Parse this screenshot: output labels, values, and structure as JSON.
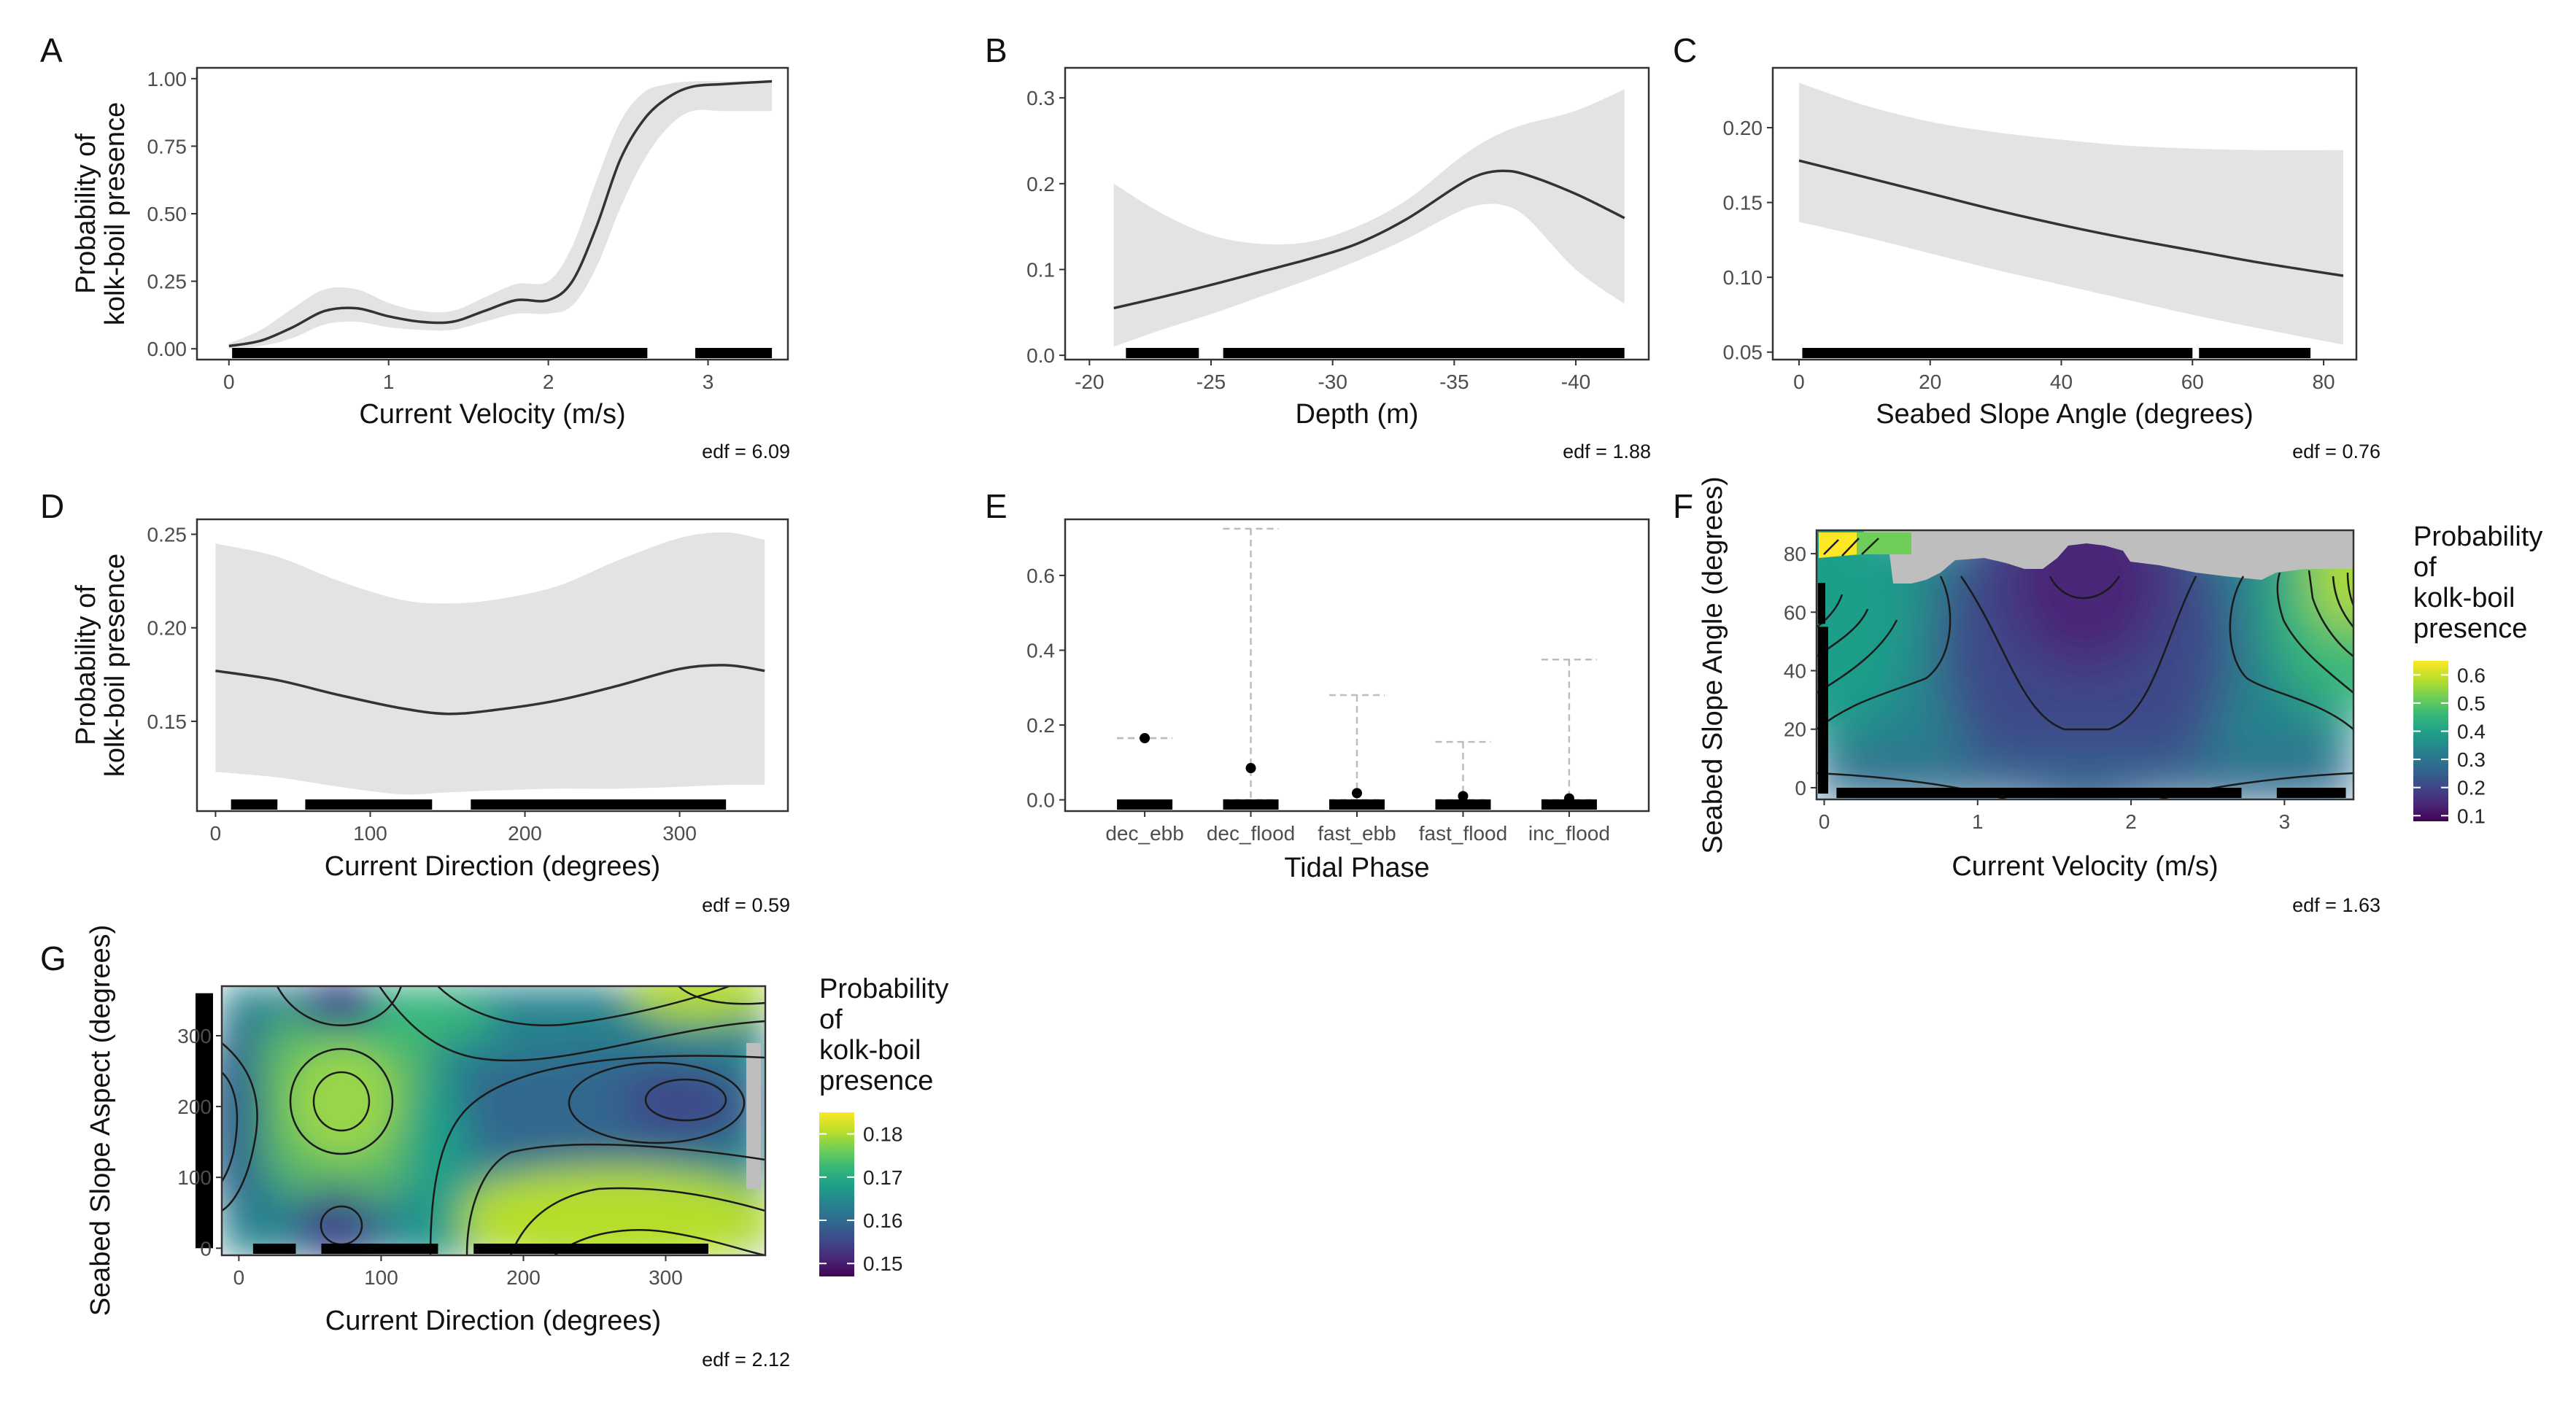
{
  "chart_data": [
    {
      "panel": "A",
      "type": "line",
      "xlabel": "Current Velocity (m/s)",
      "ylabel": "Probability of kolk-boil presence",
      "xlim": [
        -0.2,
        3.5
      ],
      "ylim": [
        -0.04,
        1.04
      ],
      "xticks": [
        0,
        1,
        2,
        3
      ],
      "xticklabels": [
        "0",
        "1",
        "2",
        "3"
      ],
      "yticks": [
        0,
        0.25,
        0.5,
        0.75,
        1.0
      ],
      "yticklabels": [
        "0.00",
        "0.25",
        "0.50",
        "0.75",
        "1.00"
      ],
      "x": [
        0.0,
        0.2,
        0.4,
        0.6,
        0.8,
        1.0,
        1.2,
        1.4,
        1.6,
        1.8,
        2.0,
        2.15,
        2.3,
        2.45,
        2.6,
        2.75,
        2.9,
        3.1,
        3.4
      ],
      "y": [
        0.01,
        0.03,
        0.08,
        0.14,
        0.15,
        0.12,
        0.1,
        0.1,
        0.14,
        0.18,
        0.18,
        0.25,
        0.45,
        0.7,
        0.85,
        0.93,
        0.97,
        0.98,
        0.99
      ],
      "lower": [
        0.0,
        0.01,
        0.04,
        0.09,
        0.1,
        0.08,
        0.07,
        0.07,
        0.1,
        0.13,
        0.13,
        0.16,
        0.3,
        0.52,
        0.7,
        0.82,
        0.88,
        0.88,
        0.88
      ],
      "upper": [
        0.02,
        0.07,
        0.15,
        0.22,
        0.22,
        0.17,
        0.14,
        0.14,
        0.19,
        0.24,
        0.25,
        0.38,
        0.62,
        0.84,
        0.95,
        0.98,
        0.99,
        0.99,
        0.99
      ],
      "rug": [
        [
          0.02,
          2.62
        ],
        [
          2.92,
          3.4
        ]
      ],
      "edf": "edf = 6.09"
    },
    {
      "panel": "B",
      "type": "line",
      "xlabel": "Depth (m)",
      "ylabel": "",
      "xlim": [
        -19,
        -43
      ],
      "ylim": [
        -0.005,
        0.335
      ],
      "xticks": [
        -20,
        -25,
        -30,
        -35,
        -40
      ],
      "xticklabels": [
        "-20",
        "-25",
        "-30",
        "-35",
        "-40"
      ],
      "yticks": [
        0.0,
        0.1,
        0.2,
        0.3
      ],
      "yticklabels": [
        "0.0",
        "0.1",
        "0.2",
        "0.3"
      ],
      "x": [
        -21,
        -23,
        -25,
        -27,
        -29,
        -31,
        -33,
        -35,
        -36,
        -37,
        -38,
        -40,
        -42
      ],
      "y": [
        0.055,
        0.068,
        0.082,
        0.097,
        0.112,
        0.13,
        0.158,
        0.195,
        0.21,
        0.215,
        0.21,
        0.188,
        0.16
      ],
      "lower": [
        0.01,
        0.03,
        0.048,
        0.068,
        0.088,
        0.11,
        0.135,
        0.165,
        0.175,
        0.175,
        0.16,
        0.1,
        0.06
      ],
      "upper": [
        0.2,
        0.165,
        0.14,
        0.13,
        0.132,
        0.15,
        0.18,
        0.225,
        0.245,
        0.26,
        0.27,
        0.285,
        0.31
      ],
      "rug": [
        [
          -21.5,
          -24.5
        ],
        [
          -25.5,
          -42
        ]
      ],
      "edf": "edf = 1.88"
    },
    {
      "panel": "C",
      "type": "line",
      "xlabel": "Seabed Slope Angle (degrees)",
      "ylabel": "",
      "xlim": [
        -4,
        85
      ],
      "ylim": [
        0.045,
        0.24
      ],
      "xticks": [
        0,
        20,
        40,
        60,
        80
      ],
      "xticklabels": [
        "0",
        "20",
        "40",
        "60",
        "80"
      ],
      "yticks": [
        0.05,
        0.1,
        0.15,
        0.2
      ],
      "yticklabels": [
        "0.05",
        "0.10",
        "0.15",
        "0.20"
      ],
      "x": [
        0,
        10,
        20,
        30,
        40,
        50,
        60,
        70,
        83
      ],
      "y": [
        0.178,
        0.167,
        0.156,
        0.145,
        0.135,
        0.126,
        0.118,
        0.11,
        0.101
      ],
      "lower": [
        0.137,
        0.127,
        0.116,
        0.105,
        0.095,
        0.085,
        0.075,
        0.066,
        0.055
      ],
      "upper": [
        0.23,
        0.215,
        0.204,
        0.197,
        0.192,
        0.188,
        0.186,
        0.185,
        0.185
      ],
      "rug": [
        [
          0.5,
          60
        ],
        [
          61,
          78
        ]
      ],
      "edf": "edf = 0.76"
    },
    {
      "panel": "D",
      "type": "line",
      "xlabel": "Current Direction (degrees)",
      "ylabel": "Probability of kolk-boil presence",
      "xlim": [
        -12,
        370
      ],
      "ylim": [
        0.102,
        0.258
      ],
      "xticks": [
        0,
        100,
        200,
        300
      ],
      "xticklabels": [
        "0",
        "100",
        "200",
        "300"
      ],
      "yticks": [
        0.15,
        0.2,
        0.25
      ],
      "yticklabels": [
        "0.15",
        "0.20",
        "0.25"
      ],
      "x": [
        0,
        40,
        80,
        120,
        150,
        180,
        220,
        260,
        300,
        330,
        355
      ],
      "y": [
        0.177,
        0.172,
        0.164,
        0.157,
        0.154,
        0.156,
        0.161,
        0.169,
        0.178,
        0.18,
        0.177
      ],
      "lower": [
        0.123,
        0.12,
        0.115,
        0.111,
        0.112,
        0.113,
        0.114,
        0.114,
        0.115,
        0.116,
        0.116
      ],
      "upper": [
        0.245,
        0.238,
        0.225,
        0.215,
        0.213,
        0.215,
        0.222,
        0.236,
        0.248,
        0.251,
        0.247
      ],
      "rug": [
        [
          10,
          40
        ],
        [
          58,
          140
        ],
        [
          165,
          330
        ]
      ],
      "edf": "edf = 0.59"
    },
    {
      "panel": "E",
      "type": "errorbar",
      "xlabel": "Tidal Phase",
      "ylabel": "",
      "ylim": [
        -0.03,
        0.75
      ],
      "categories": [
        "dec_ebb",
        "dec_flood",
        "fast_ebb",
        "fast_flood",
        "inc_flood"
      ],
      "values": [
        0.165,
        0.085,
        0.018,
        0.01,
        0.004
      ],
      "lower": [
        0.165,
        0.0,
        0.0,
        0.0,
        0.0
      ],
      "upper": [
        0.165,
        0.725,
        0.28,
        0.155,
        0.375
      ],
      "yticks": [
        0.0,
        0.2,
        0.4,
        0.6
      ],
      "yticklabels": [
        "0.0",
        "0.2",
        "0.4",
        "0.6"
      ]
    },
    {
      "panel": "F",
      "type": "heatmap",
      "xlabel": "Current Velocity (m/s)",
      "ylabel": "Seabed Slope Angle (degrees)",
      "xlim": [
        -0.05,
        3.45
      ],
      "ylim": [
        -4,
        88
      ],
      "xticks": [
        0,
        1,
        2,
        3
      ],
      "xticklabels": [
        "0",
        "1",
        "2",
        "3"
      ],
      "yticks": [
        0,
        20,
        40,
        60,
        80
      ],
      "yticklabels": [
        "0",
        "20",
        "40",
        "60",
        "80"
      ],
      "legend_title": "Probability of kolk-boil presence",
      "legend_ticks": [
        "0.1",
        "0.2",
        "0.3",
        "0.4",
        "0.5",
        "0.6"
      ],
      "legend_range": [
        0.08,
        0.65
      ],
      "edf": "edf = 1.63"
    },
    {
      "panel": "G",
      "type": "heatmap",
      "xlabel": "Current Direction (degrees)",
      "ylabel": "Seabed Slope Aspect (degrees)",
      "xlim": [
        -12,
        370
      ],
      "ylim": [
        -10,
        370
      ],
      "xticks": [
        0,
        100,
        200,
        300
      ],
      "xticklabels": [
        "0",
        "100",
        "200",
        "300"
      ],
      "yticks": [
        0,
        100,
        200,
        300
      ],
      "yticklabels": [
        "0",
        "100",
        "200",
        "300"
      ],
      "legend_title": "Probability of kolk-boil presence",
      "legend_ticks": [
        "0.15",
        "0.16",
        "0.17",
        "0.18"
      ],
      "legend_range": [
        0.147,
        0.185
      ],
      "edf": "edf = 2.12"
    }
  ],
  "colors": {
    "curve": "#333333",
    "ribbon": "#e3e3e3",
    "na": "#bebebe"
  },
  "viridis": [
    "#440154",
    "#482878",
    "#3e4989",
    "#31688e",
    "#26828e",
    "#1f9e89",
    "#35b779",
    "#6ece58",
    "#b5de2b",
    "#fde725"
  ]
}
